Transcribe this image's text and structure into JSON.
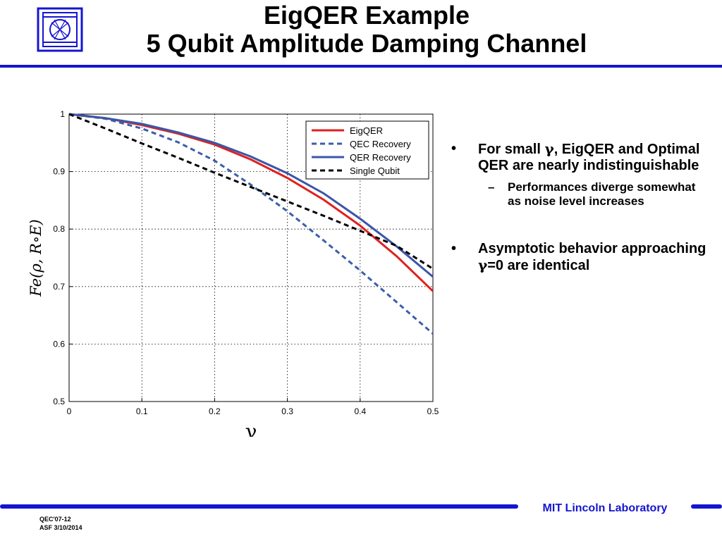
{
  "header": {
    "title_line1": "EigQER Example",
    "title_line2": "5 Qubit Amplitude Damping Channel"
  },
  "logo": {
    "icon": "mit-ll-logo-icon"
  },
  "bullets": {
    "b1_prefix": "For small ",
    "b1_gamma": "γ",
    "b1_suffix": ", EigQER and Optimal QER are nearly indistinguishable",
    "b1_sub": "Performances diverge somewhat as noise level increases",
    "b2_prefix": "Asymptotic behavior approaching ",
    "b2_gamma": "γ",
    "b2_suffix": "=0 are identical",
    "dot_glyph": "•",
    "dash_glyph": "–"
  },
  "footer": {
    "lab": "MIT Lincoln Laboratory",
    "code": "QEC'07-12",
    "author_date": "ASF 3/10/2014",
    "accent_color": "#1515d0"
  },
  "chart_data": {
    "type": "line",
    "xlabel": "γ",
    "ylabel": "Fe(ρ, R∘E)",
    "xlim": [
      0,
      0.5
    ],
    "ylim": [
      0.5,
      1
    ],
    "xticks": [
      "0",
      "0.1",
      "0.2",
      "0.3",
      "0.4",
      "0.5"
    ],
    "yticks": [
      "0.5",
      "0.6",
      "0.7",
      "0.8",
      "0.9",
      "1"
    ],
    "grid": true,
    "legend_position": "top-right",
    "x": [
      0,
      0.05,
      0.1,
      0.15,
      0.2,
      0.25,
      0.3,
      0.35,
      0.4,
      0.45,
      0.5
    ],
    "series": [
      {
        "name": "EigQER",
        "color": "#e02020",
        "dash": "solid",
        "values": [
          1.0,
          0.993,
          0.981,
          0.966,
          0.947,
          0.921,
          0.889,
          0.851,
          0.806,
          0.753,
          0.692
        ]
      },
      {
        "name": "QEC Recovery",
        "color": "#3a5fa8",
        "dash": "dashed",
        "values": [
          1.0,
          0.992,
          0.975,
          0.951,
          0.919,
          0.877,
          0.831,
          0.78,
          0.728,
          0.673,
          0.618
        ]
      },
      {
        "name": "QER Recovery",
        "color": "#3a56a8",
        "dash": "solid",
        "values": [
          1.0,
          0.993,
          0.983,
          0.968,
          0.95,
          0.926,
          0.897,
          0.862,
          0.818,
          0.77,
          0.717
        ]
      },
      {
        "name": "Single Qubit",
        "color": "#000000",
        "dash": "dashed",
        "values": [
          1.0,
          0.975,
          0.949,
          0.924,
          0.898,
          0.873,
          0.848,
          0.823,
          0.797,
          0.771,
          0.731
        ]
      }
    ]
  }
}
